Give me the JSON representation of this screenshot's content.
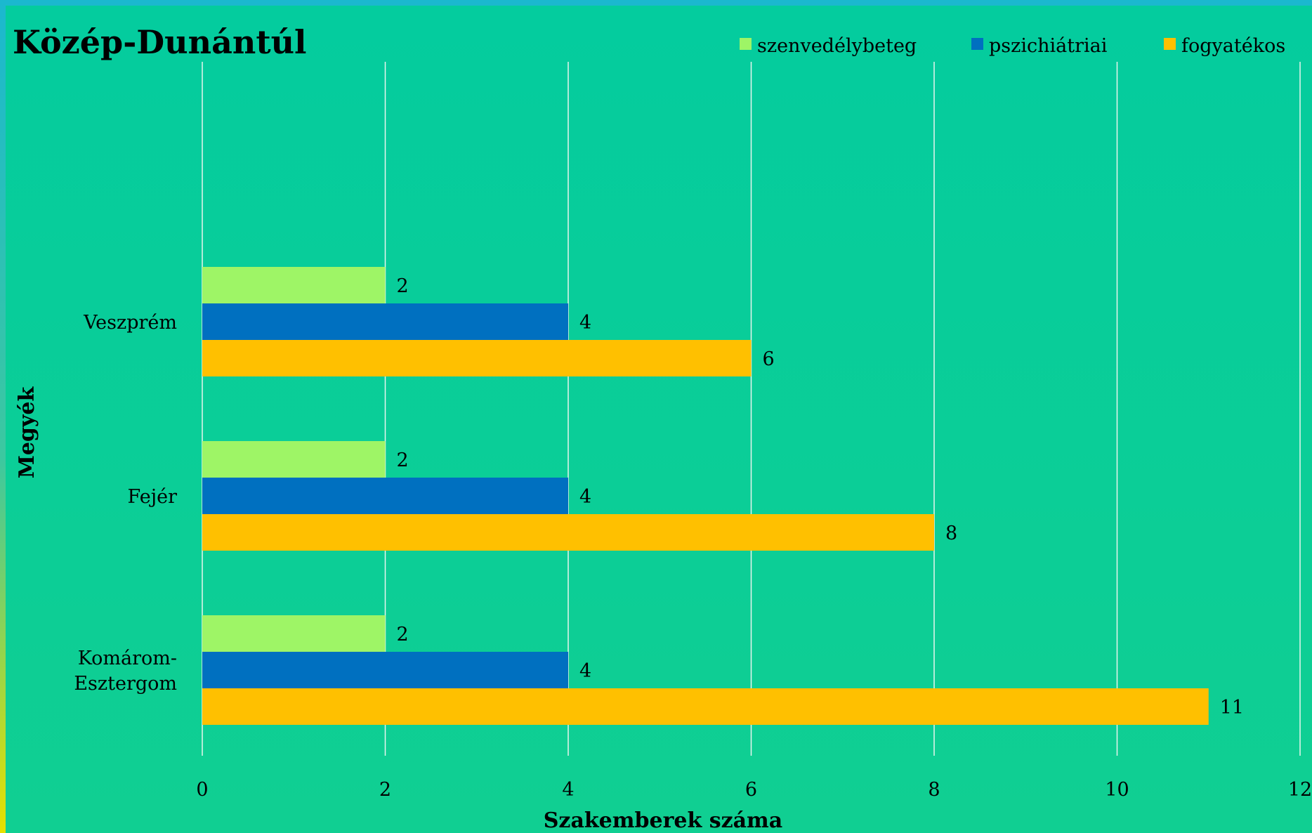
{
  "chart_data": {
    "type": "bar",
    "orientation": "horizontal",
    "title": "Közép-Dunántúl",
    "xlabel": "Szakemberek száma",
    "ylabel": "Megyék",
    "xlim": [
      0,
      12
    ],
    "xticks": [
      "0",
      "2",
      "4",
      "6",
      "8",
      "10",
      "12"
    ],
    "grid": true,
    "legend_position": "top-right",
    "categories": [
      [
        "Veszprém"
      ],
      [
        "Fejér"
      ],
      [
        "Komárom-",
        "Esztergom"
      ]
    ],
    "series": [
      {
        "name": "szenvedélybeteg",
        "color": "#9ef566",
        "values": [
          2,
          2,
          2
        ]
      },
      {
        "name": "pszichiátriai",
        "color": "#0070c0",
        "values": [
          4,
          4,
          4
        ]
      },
      {
        "name": "fogyatékos",
        "color": "#ffc000",
        "values": [
          6,
          8,
          11
        ]
      }
    ]
  }
}
